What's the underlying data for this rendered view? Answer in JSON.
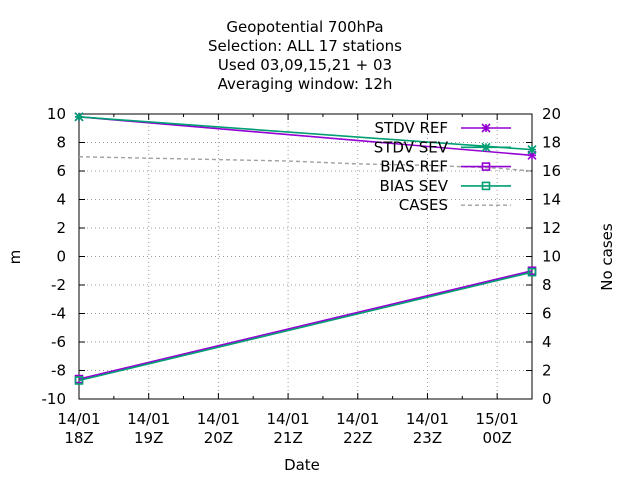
{
  "chart_data": {
    "type": "line",
    "title_lines": [
      "Geopotential 700hPa",
      "Selection: ALL     17 stations",
      "Used  03,09,15,21 + 03",
      "Averaging window: 12h"
    ],
    "xlabel": "Date",
    "ylabel": "m",
    "y2label": "No cases",
    "x_ticks": [
      {
        "top": "14/01",
        "bottom": "18Z"
      },
      {
        "top": "14/01",
        "bottom": "19Z"
      },
      {
        "top": "14/01",
        "bottom": "20Z"
      },
      {
        "top": "14/01",
        "bottom": "21Z"
      },
      {
        "top": "14/01",
        "bottom": "22Z"
      },
      {
        "top": "14/01",
        "bottom": "23Z"
      },
      {
        "top": "15/01",
        "bottom": "00Z"
      }
    ],
    "xlim": [
      0,
      6.5
    ],
    "ylim": [
      -10,
      10
    ],
    "y_ticks": [
      -10,
      -8,
      -6,
      -4,
      -2,
      0,
      2,
      4,
      6,
      8,
      10
    ],
    "y2lim": [
      0,
      20
    ],
    "y2_ticks": [
      0,
      2,
      4,
      6,
      8,
      10,
      12,
      14,
      16,
      18,
      20
    ],
    "grid": true,
    "legend_position": "top-right",
    "series": [
      {
        "name": "STDV REF",
        "axis": "y",
        "color": "#9400d3",
        "marker": "x-star",
        "dashed": false,
        "x": [
          0,
          6.5
        ],
        "y": [
          9.8,
          7.1
        ]
      },
      {
        "name": "STDV SEV",
        "axis": "y",
        "color": "#009e73",
        "marker": "x-star",
        "dashed": false,
        "x": [
          0,
          6.5
        ],
        "y": [
          9.8,
          7.5
        ]
      },
      {
        "name": "BIAS REF",
        "axis": "y",
        "color": "#9400d3",
        "marker": "square",
        "dashed": false,
        "x": [
          0,
          6.5
        ],
        "y": [
          -8.6,
          -1.0
        ]
      },
      {
        "name": "BIAS SEV",
        "axis": "y",
        "color": "#009e73",
        "marker": "square",
        "dashed": false,
        "x": [
          0,
          6.5
        ],
        "y": [
          -8.7,
          -1.1
        ]
      },
      {
        "name": "CASES",
        "axis": "y2",
        "color": "#a0a0a0",
        "marker": "none",
        "dashed": true,
        "x": [
          0,
          1,
          2,
          3,
          4,
          5,
          6,
          6.5
        ],
        "y": [
          17.0,
          16.9,
          16.8,
          16.7,
          16.5,
          16.4,
          16.2,
          16.0
        ]
      }
    ]
  }
}
